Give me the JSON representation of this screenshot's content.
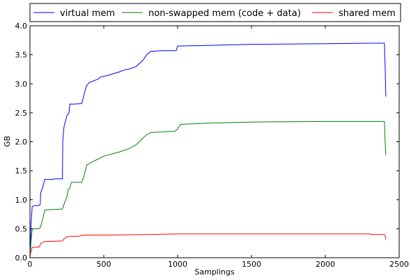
{
  "chart_data": {
    "type": "line",
    "xlabel": "Samplings",
    "ylabel": "GB",
    "xlim": [
      0,
      2500
    ],
    "ylim": [
      0,
      4.0
    ],
    "x_ticks": [
      "0",
      "500",
      "1000",
      "1500",
      "2000",
      "2500"
    ],
    "y_ticks": [
      "0.0",
      "0.5",
      "1.0",
      "1.5",
      "2.0",
      "2.5",
      "3.0",
      "3.5",
      "4.0"
    ],
    "grid": false,
    "legend_position": "top",
    "series": [
      {
        "name": "virtual mem",
        "color": "#0000ff",
        "points": [
          [
            0,
            0.02
          ],
          [
            8,
            0.6
          ],
          [
            15,
            0.88
          ],
          [
            30,
            0.9
          ],
          [
            60,
            0.9
          ],
          [
            70,
            0.92
          ],
          [
            72,
            1.12
          ],
          [
            85,
            1.2
          ],
          [
            100,
            1.35
          ],
          [
            140,
            1.35
          ],
          [
            180,
            1.36
          ],
          [
            220,
            1.36
          ],
          [
            222,
            2.0
          ],
          [
            230,
            2.25
          ],
          [
            250,
            2.45
          ],
          [
            265,
            2.5
          ],
          [
            270,
            2.65
          ],
          [
            300,
            2.65
          ],
          [
            350,
            2.66
          ],
          [
            360,
            2.75
          ],
          [
            380,
            2.95
          ],
          [
            400,
            3.02
          ],
          [
            430,
            3.05
          ],
          [
            460,
            3.08
          ],
          [
            480,
            3.12
          ],
          [
            520,
            3.14
          ],
          [
            560,
            3.17
          ],
          [
            600,
            3.2
          ],
          [
            640,
            3.24
          ],
          [
            680,
            3.26
          ],
          [
            720,
            3.3
          ],
          [
            750,
            3.37
          ],
          [
            770,
            3.42
          ],
          [
            790,
            3.5
          ],
          [
            820,
            3.56
          ],
          [
            900,
            3.57
          ],
          [
            990,
            3.57
          ],
          [
            1000,
            3.65
          ],
          [
            1200,
            3.66
          ],
          [
            1500,
            3.68
          ],
          [
            2000,
            3.69
          ],
          [
            2300,
            3.7
          ],
          [
            2400,
            3.7
          ],
          [
            2405,
            3.3
          ],
          [
            2410,
            2.78
          ]
        ]
      },
      {
        "name": "non-swapped mem (code + data)",
        "color": "#008000",
        "points": [
          [
            0,
            0.02
          ],
          [
            8,
            0.3
          ],
          [
            15,
            0.49
          ],
          [
            30,
            0.5
          ],
          [
            60,
            0.5
          ],
          [
            70,
            0.52
          ],
          [
            85,
            0.65
          ],
          [
            100,
            0.82
          ],
          [
            140,
            0.83
          ],
          [
            220,
            0.84
          ],
          [
            235,
            0.95
          ],
          [
            250,
            1.05
          ],
          [
            260,
            1.18
          ],
          [
            270,
            1.2
          ],
          [
            280,
            1.3
          ],
          [
            350,
            1.3
          ],
          [
            365,
            1.4
          ],
          [
            385,
            1.6
          ],
          [
            420,
            1.65
          ],
          [
            460,
            1.7
          ],
          [
            500,
            1.75
          ],
          [
            540,
            1.78
          ],
          [
            600,
            1.82
          ],
          [
            660,
            1.87
          ],
          [
            720,
            1.95
          ],
          [
            760,
            2.05
          ],
          [
            790,
            2.12
          ],
          [
            820,
            2.16
          ],
          [
            900,
            2.17
          ],
          [
            980,
            2.18
          ],
          [
            1000,
            2.22
          ],
          [
            1020,
            2.3
          ],
          [
            1200,
            2.32
          ],
          [
            1500,
            2.34
          ],
          [
            2000,
            2.35
          ],
          [
            2400,
            2.35
          ],
          [
            2405,
            2.0
          ],
          [
            2410,
            1.77
          ]
        ]
      },
      {
        "name": "shared mem",
        "color": "#ff0000",
        "points": [
          [
            0,
            0.02
          ],
          [
            15,
            0.18
          ],
          [
            60,
            0.18
          ],
          [
            75,
            0.25
          ],
          [
            100,
            0.28
          ],
          [
            220,
            0.29
          ],
          [
            240,
            0.35
          ],
          [
            270,
            0.37
          ],
          [
            330,
            0.37
          ],
          [
            360,
            0.39
          ],
          [
            500,
            0.39
          ],
          [
            800,
            0.4
          ],
          [
            1000,
            0.41
          ],
          [
            2000,
            0.41
          ],
          [
            2300,
            0.41
          ],
          [
            2320,
            0.4
          ],
          [
            2400,
            0.4
          ],
          [
            2405,
            0.38
          ],
          [
            2410,
            0.31
          ]
        ]
      }
    ]
  }
}
